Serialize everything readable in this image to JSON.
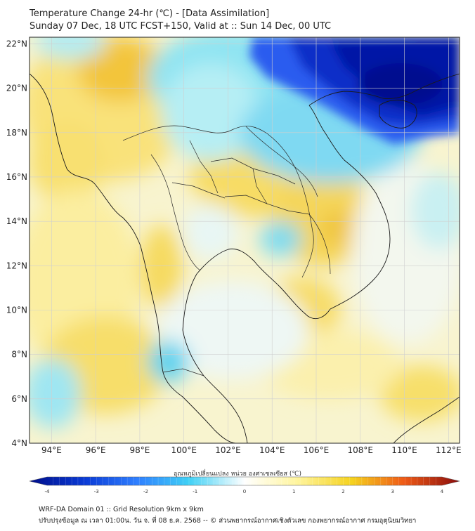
{
  "header": {
    "title_line1": "Temperature Change 24-hr (℃) - [Data Assimilation]",
    "title_line2": "Sunday 07 Dec, 18 UTC FCST+150, Valid at :: Sun 14 Dec, 00 UTC"
  },
  "map": {
    "lat_labels": [
      "22°N",
      "20°N",
      "18°N",
      "16°N",
      "14°N",
      "12°N",
      "10°N",
      "8°N",
      "6°N",
      "4°N"
    ],
    "lon_labels": [
      "94°E",
      "96°E",
      "98°E",
      "100°E",
      "102°E",
      "104°E",
      "106°E",
      "108°E",
      "110°E",
      "112°E"
    ],
    "lat_range": [
      4,
      22.3
    ],
    "lon_range": [
      93,
      112.5
    ]
  },
  "colorbar": {
    "title": "อุณหภูมิเปลี่ยนแปลง หน่วย องศาเซลเซียส (℃)",
    "ticks": [
      "-4",
      "-3",
      "-2",
      "-1",
      "0",
      "1",
      "2",
      "3",
      "4"
    ],
    "range": [
      -4,
      4
    ],
    "colors": [
      "#000e8a",
      "#0a3bd6",
      "#2f7fff",
      "#3fd0f5",
      "#ffffff",
      "#fff5a0",
      "#f5d21e",
      "#ef5a16",
      "#8a0d0d"
    ]
  },
  "footer": {
    "line1": "WRF-DA Domain 01 :: Grid Resolution 9km x 9km",
    "line2": "ปรับปรุงข้อมูล ณ เวลา 01:00น. วัน จ. ที่ 08 ธ.ค. 2568 -- © ส่วนพยากรณ์อากาศเชิงตัวเลข กองพยากรณ์อากาศ กรมอุตุนิยมวิทยา"
  }
}
